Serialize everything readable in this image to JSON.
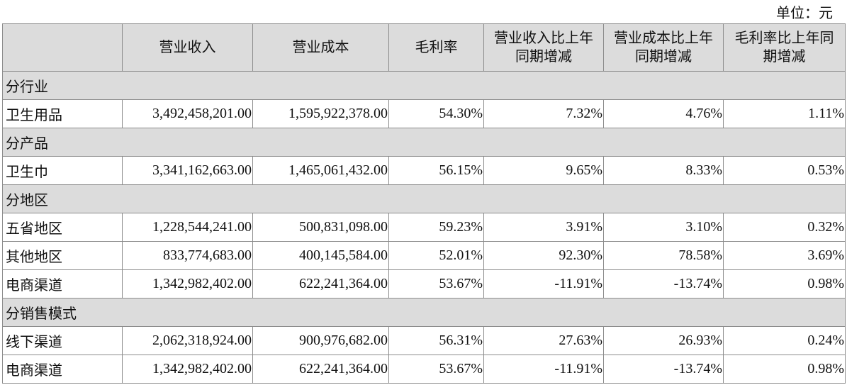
{
  "unit": "单位：元",
  "table": {
    "header": [
      "",
      "营业收入",
      "营业成本",
      "毛利率",
      "营业收入比上年同期增减",
      "营业成本比上年同期增减",
      "毛利率比上年同期增减"
    ],
    "rows": [
      [
        "分行业"
      ],
      [
        "卫生用品",
        "3,492,458,201.00",
        "1,595,922,378.00",
        "54.30%",
        "7.32%",
        "4.76%",
        "1.11%"
      ],
      [
        "分产品"
      ],
      [
        "卫生巾",
        "3,341,162,663.00",
        "1,465,061,432.00",
        "56.15%",
        "9.65%",
        "8.33%",
        "0.53%"
      ],
      [
        "分地区"
      ],
      [
        "五省地区",
        "1,228,544,241.00",
        "500,831,098.00",
        "59.23%",
        "3.91%",
        "3.10%",
        "0.32%"
      ],
      [
        "其他地区",
        "833,774,683.00",
        "400,145,584.00",
        "52.01%",
        "92.30%",
        "78.58%",
        "3.69%"
      ],
      [
        "电商渠道",
        "1,342,982,402.00",
        "622,241,364.00",
        "53.67%",
        "-11.91%",
        "-13.74%",
        "0.98%"
      ],
      [
        "分销售模式"
      ],
      [
        "线下渠道",
        "2,062,318,924.00",
        "900,976,682.00",
        "56.31%",
        "27.63%",
        "26.93%",
        "0.24%"
      ],
      [
        "电商渠道",
        "1,342,982,402.00",
        "622,241,364.00",
        "53.67%",
        "-11.91%",
        "-13.74%",
        "0.98%"
      ]
    ]
  }
}
